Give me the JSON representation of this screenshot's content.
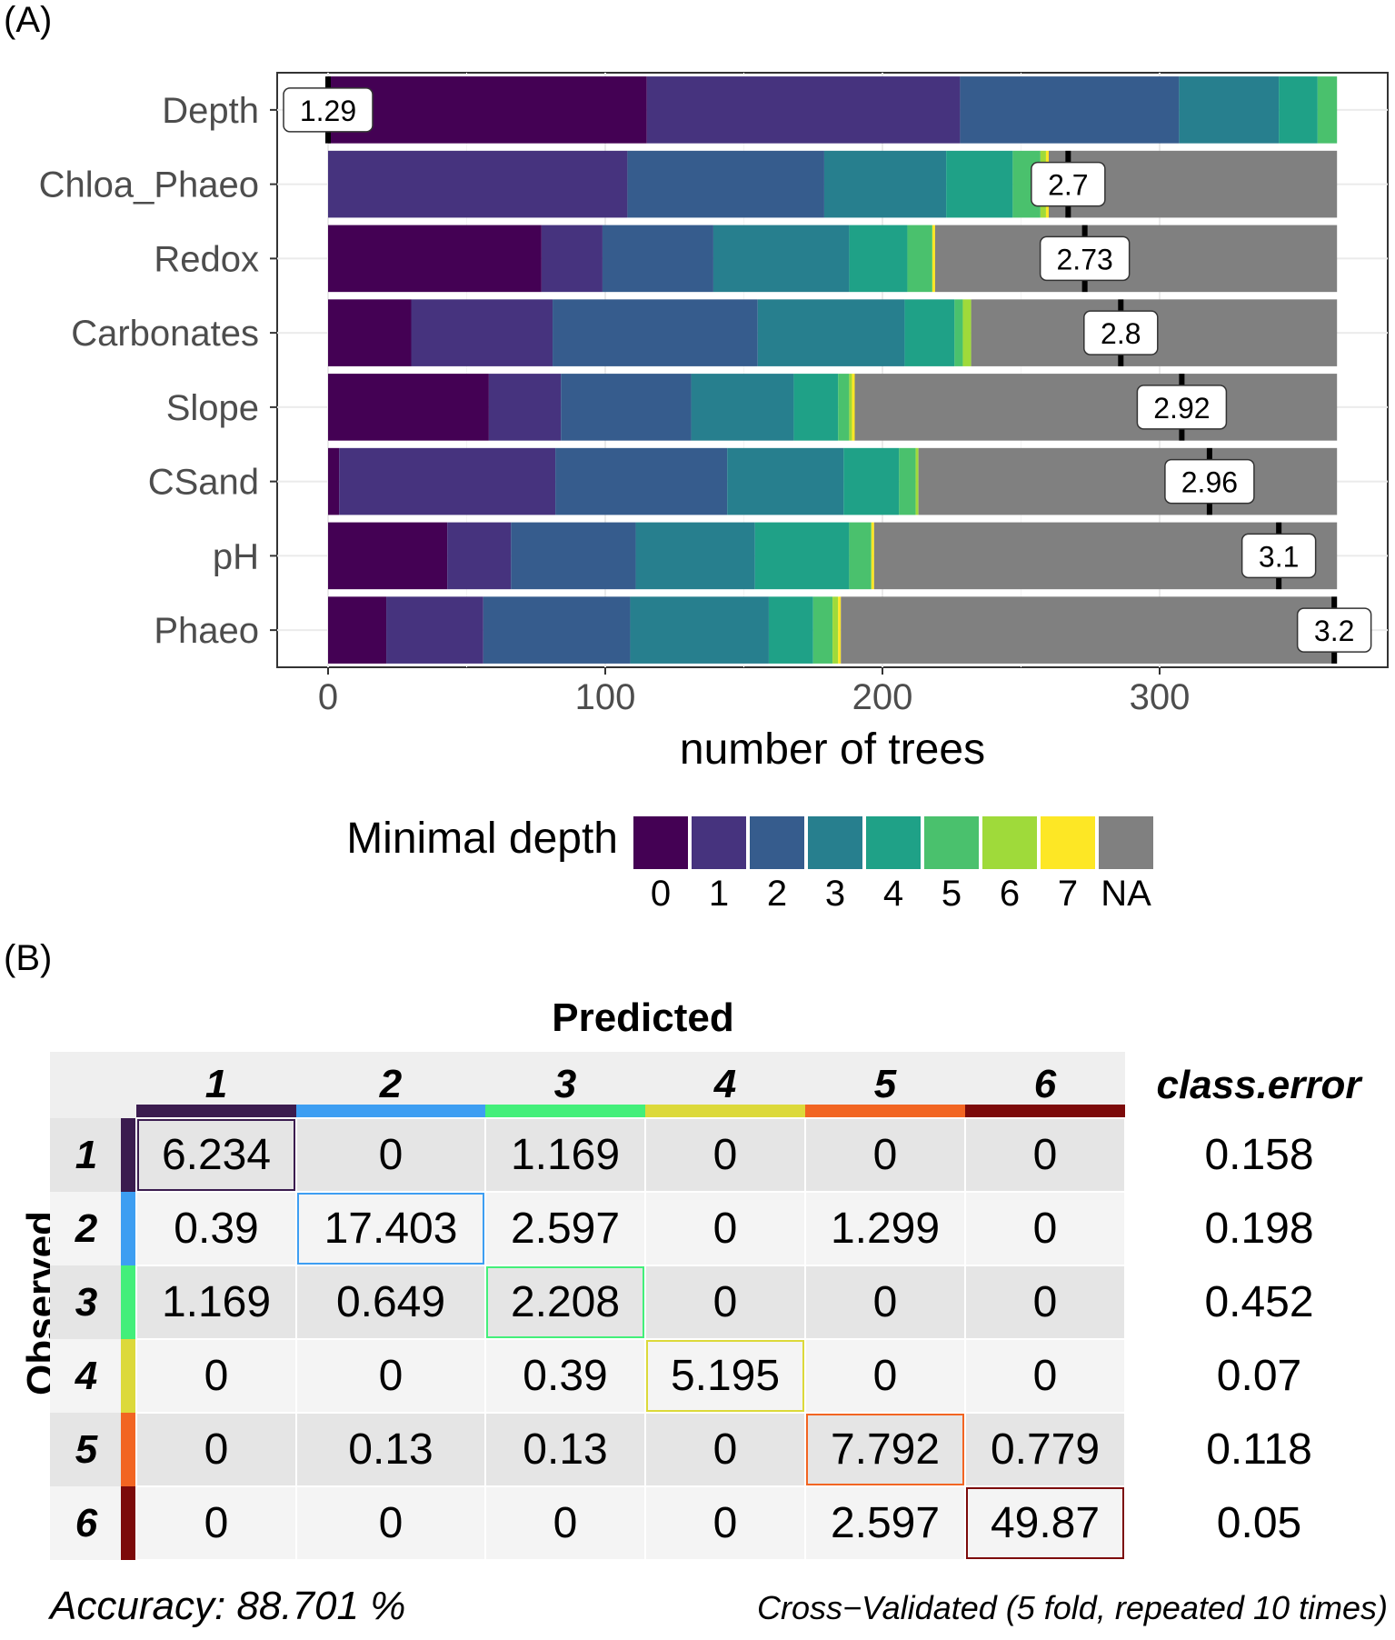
{
  "panel_a_label": "(A)",
  "panel_b_label": "(B)",
  "chart_data": [
    {
      "type": "bar",
      "stacked": true,
      "orientation": "horizontal",
      "xlabel": "number of trees",
      "xlim": [
        0,
        365
      ],
      "xticks": [
        0,
        100,
        200,
        300
      ],
      "xtick_labels": [
        "0",
        "100",
        "200",
        "300"
      ],
      "categories": [
        "Depth",
        "Chloa_Phaeo",
        "Redox",
        "Carbonates",
        "Slope",
        "CSand",
        "pH",
        "Phaeo"
      ],
      "legend": {
        "title": "Minimal depth",
        "keys": [
          "0",
          "1",
          "2",
          "3",
          "4",
          "5",
          "6",
          "7",
          "NA"
        ],
        "colors": [
          "#440154",
          "#46337e",
          "#365c8d",
          "#277f8e",
          "#1fa187",
          "#4ac16d",
          "#9fda3a",
          "#fde725",
          "#808080"
        ]
      },
      "series": [
        {
          "name": "0",
          "values": [
            115,
            0,
            77,
            30,
            58,
            4,
            43,
            21
          ]
        },
        {
          "name": "1",
          "values": [
            113,
            108,
            22,
            51,
            26,
            78,
            23,
            35
          ]
        },
        {
          "name": "2",
          "values": [
            79,
            71,
            40,
            74,
            47,
            62,
            45,
            53
          ]
        },
        {
          "name": "3",
          "values": [
            36,
            44,
            49,
            53,
            37,
            42,
            43,
            50
          ]
        },
        {
          "name": "4",
          "values": [
            14,
            24,
            21,
            18,
            16,
            20,
            34,
            16
          ]
        },
        {
          "name": "5",
          "values": [
            7,
            10,
            9,
            3,
            4,
            6,
            8,
            7
          ]
        },
        {
          "name": "6",
          "values": [
            0,
            2,
            0,
            3,
            1,
            1,
            0,
            2
          ]
        },
        {
          "name": "7",
          "values": [
            0,
            1,
            1,
            0,
            1,
            0,
            1,
            1
          ]
        },
        {
          "name": "NA",
          "values": [
            0,
            104,
            145,
            132,
            174,
            151,
            167,
            179
          ]
        }
      ],
      "mean_min_depth": {
        "labels": [
          "1.29",
          "2.7",
          "2.73",
          "2.8",
          "2.92",
          "2.96",
          "3.1",
          "3.2"
        ],
        "positions": [
          0,
          267,
          273,
          286,
          308,
          318,
          343,
          363
        ]
      }
    },
    {
      "type": "table",
      "title": "Predicted",
      "row_title": "Observed",
      "columns": [
        "1",
        "2",
        "3",
        "4",
        "5",
        "6"
      ],
      "error_header": "class.error",
      "class_colors": [
        "#3b1c4f",
        "#3d9ef2",
        "#43ef7a",
        "#dcd93a",
        "#f26522",
        "#7c0a0a"
      ],
      "rows": [
        {
          "label": "1",
          "values": [
            "6.234",
            "0",
            "1.169",
            "0",
            "0",
            "0"
          ],
          "error": "0.158"
        },
        {
          "label": "2",
          "values": [
            "0.39",
            "17.403",
            "2.597",
            "0",
            "1.299",
            "0"
          ],
          "error": "0.198"
        },
        {
          "label": "3",
          "values": [
            "1.169",
            "0.649",
            "2.208",
            "0",
            "0",
            "0"
          ],
          "error": "0.452"
        },
        {
          "label": "4",
          "values": [
            "0",
            "0",
            "0.39",
            "5.195",
            "0",
            "0"
          ],
          "error": "0.07"
        },
        {
          "label": "5",
          "values": [
            "0",
            "0.13",
            "0.13",
            "0",
            "7.792",
            "0.779"
          ],
          "error": "0.118"
        },
        {
          "label": "6",
          "values": [
            "0",
            "0",
            "0",
            "0",
            "2.597",
            "49.87"
          ],
          "error": "0.05"
        }
      ],
      "accuracy_text": "Accuracy: 88.701 %",
      "cv_text": "Cross−Validated (5 fold, repeated 10 times)"
    }
  ]
}
